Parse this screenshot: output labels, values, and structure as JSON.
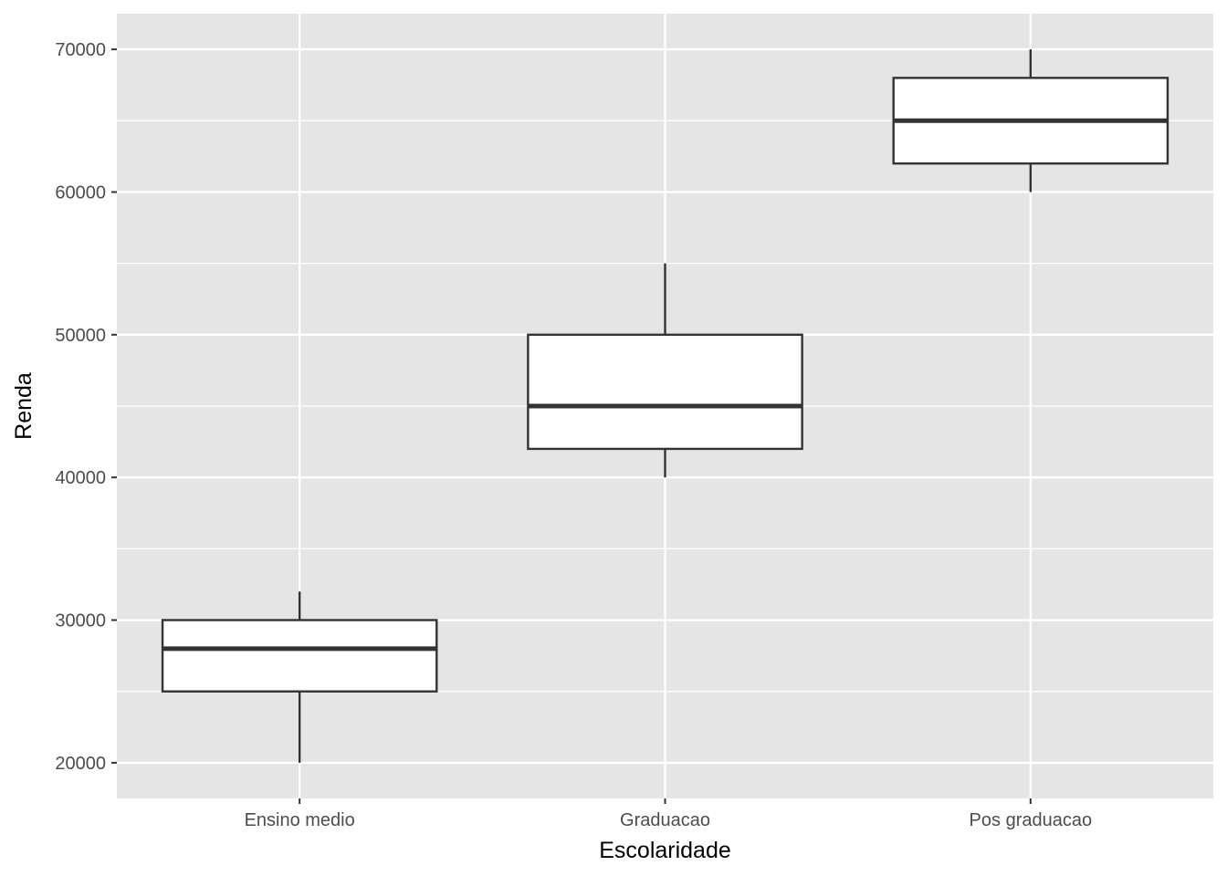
{
  "chart_data": {
    "type": "boxplot",
    "title": "",
    "xlabel": "Escolaridade",
    "ylabel": "Renda",
    "categories": [
      "Ensino medio",
      "Graduacao",
      "Pos graduacao"
    ],
    "boxes": [
      {
        "category": "Ensino medio",
        "whisker_low": 20000,
        "q1": 25000,
        "median": 28000,
        "q3": 30000,
        "whisker_high": 32000
      },
      {
        "category": "Graduacao",
        "whisker_low": 40000,
        "q1": 42000,
        "median": 45000,
        "q3": 50000,
        "whisker_high": 55000
      },
      {
        "category": "Pos graduacao",
        "whisker_low": 60000,
        "q1": 62000,
        "median": 65000,
        "q3": 68000,
        "whisker_high": 70000
      }
    ],
    "y_ticks": [
      20000,
      30000,
      40000,
      50000,
      60000,
      70000
    ],
    "y_tick_labels": [
      "20000",
      "30000",
      "40000",
      "50000",
      "60000",
      "70000"
    ],
    "ylim": [
      17500,
      72500
    ],
    "grid": true,
    "legend": "none",
    "colors": {
      "panel_background": "#e5e5e5",
      "grid": "#ffffff",
      "box_fill": "#ffffff",
      "box_stroke": "#333333",
      "tick_text": "#4d4d4d",
      "title_text": "#000000"
    }
  }
}
